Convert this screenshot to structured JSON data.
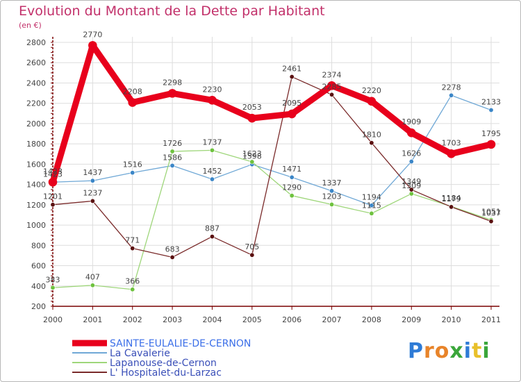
{
  "header": {
    "title": "Evolution du Montant de la Dette par Habitant",
    "subtitle": "(en €)"
  },
  "logo": {
    "letters": [
      "P",
      "r",
      "o",
      "x",
      "i",
      "t",
      "i"
    ],
    "colors": [
      "#2e7bd6",
      "#e8842a",
      "#e8842a",
      "#3aa63a",
      "#2e7bd6",
      "#e8c02a",
      "#3aa63a"
    ]
  },
  "colors": {
    "axis": "#7a0000",
    "grid": "#dddddd",
    "title": "#c2306a",
    "label": "#444444"
  },
  "chart_data": {
    "type": "line",
    "title": "Evolution du Montant de la Dette par Habitant",
    "subtitle": "(en €)",
    "x": [
      "2000",
      "2001",
      "2002",
      "2003",
      "2004",
      "2005",
      "2006",
      "2007",
      "2008",
      "2009",
      "2010",
      "2011"
    ],
    "ylim": [
      200,
      2800
    ],
    "yticks": [
      200,
      400,
      600,
      800,
      1000,
      1200,
      1400,
      1600,
      1800,
      2000,
      2200,
      2400,
      2600,
      2800
    ],
    "grid": true,
    "legend_position": "bottom-left",
    "series": [
      {
        "name": "SAINTE-EULALIE-DE-CERNON",
        "color": "#e8001c",
        "marker": "#e8001c",
        "label_color": "#444444",
        "width": 9,
        "values": [
          1423,
          2770,
          2208,
          2298,
          2230,
          2053,
          2095,
          2374,
          2220,
          1909,
          1703,
          1795
        ]
      },
      {
        "name": "La Cavalerie",
        "color": "#6fa8d6",
        "marker": "#3b86c7",
        "label_color": "#444444",
        "width": 1.3,
        "values": [
          1423,
          1437,
          1516,
          1586,
          1452,
          1598,
          1471,
          1337,
          1194,
          1626,
          2278,
          2133
        ]
      },
      {
        "name": "Lapanouse-de-Cernon",
        "color": "#9ed67a",
        "marker": "#6ec23e",
        "label_color": "#444444",
        "width": 1.3,
        "values": [
          383,
          407,
          366,
          1726,
          1737,
          1623,
          1290,
          1203,
          1115,
          1309,
          1184,
          1051
        ]
      },
      {
        "name": "L' Hospitalet-du-Larzac",
        "color": "#7a2a2a",
        "marker": "#5a1010",
        "label_color": "#444444",
        "width": 1.3,
        "values": [
          1201,
          1237,
          771,
          683,
          887,
          705,
          2461,
          2285,
          1810,
          1349,
          1179,
          1037
        ]
      }
    ]
  }
}
